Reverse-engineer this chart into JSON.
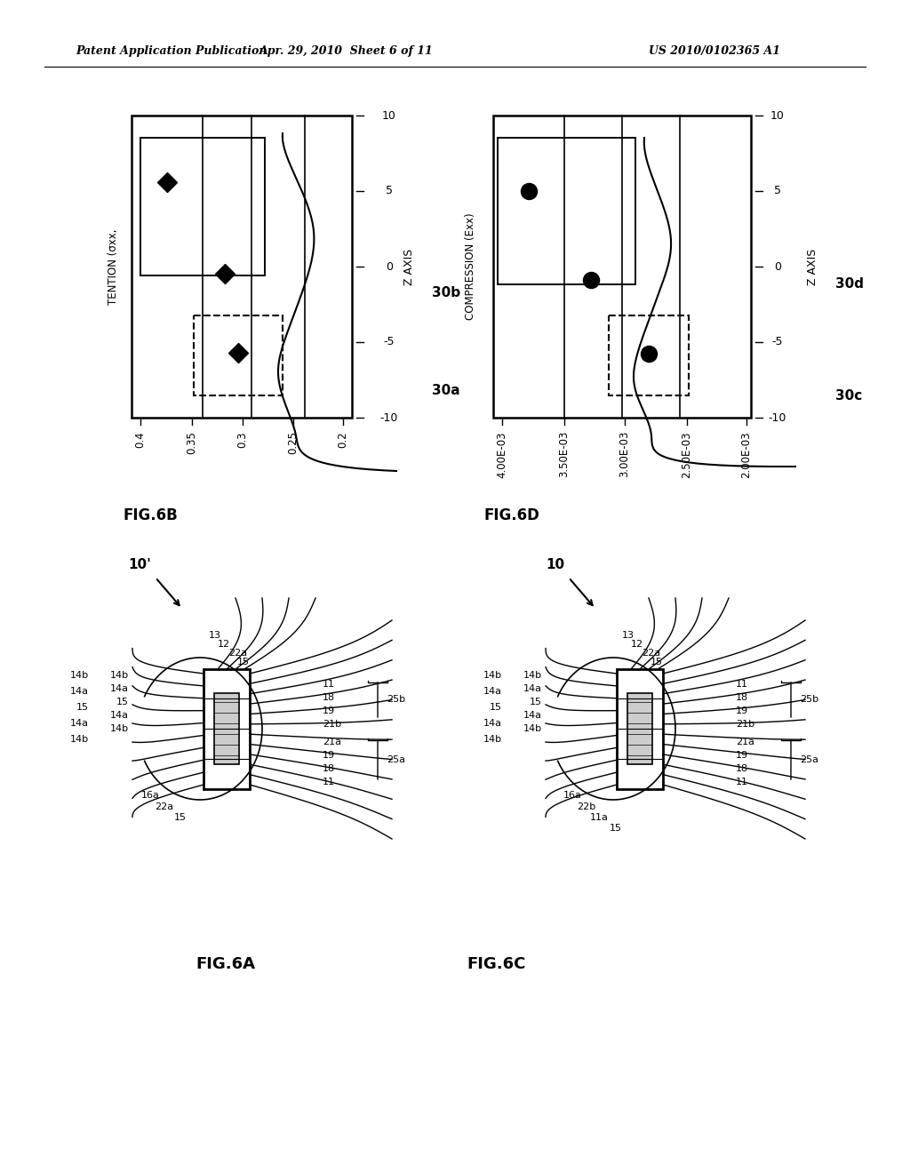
{
  "header_left": "Patent Application Publication",
  "header_mid": "Apr. 29, 2010  Sheet 6 of 11",
  "header_right": "US 2010/0102365 A1",
  "fig6b_title": "FIG.6B",
  "fig6d_title": "FIG.6D",
  "fig6a_title": "FIG.6A",
  "fig6c_title": "FIG.6C",
  "background": "#ffffff",
  "label_30b": "30b",
  "label_30a": "30a",
  "label_30d": "30d",
  "label_30c": "30c",
  "label_zaxis": "Z AXIS",
  "label_tention": "TENTION (σxx,",
  "label_compression": "COMPRESSION (Exx)",
  "zticks": [
    "10",
    "5",
    "0",
    "-5",
    "-10"
  ],
  "xticks_6b": [
    "0.4",
    "0.35",
    "0.3",
    "0.25",
    "0.2"
  ],
  "xticks_6d": [
    "4.00E-03",
    "3.50E-03",
    "3.00E-03",
    "2.50E-03",
    "2.00E-03"
  ]
}
